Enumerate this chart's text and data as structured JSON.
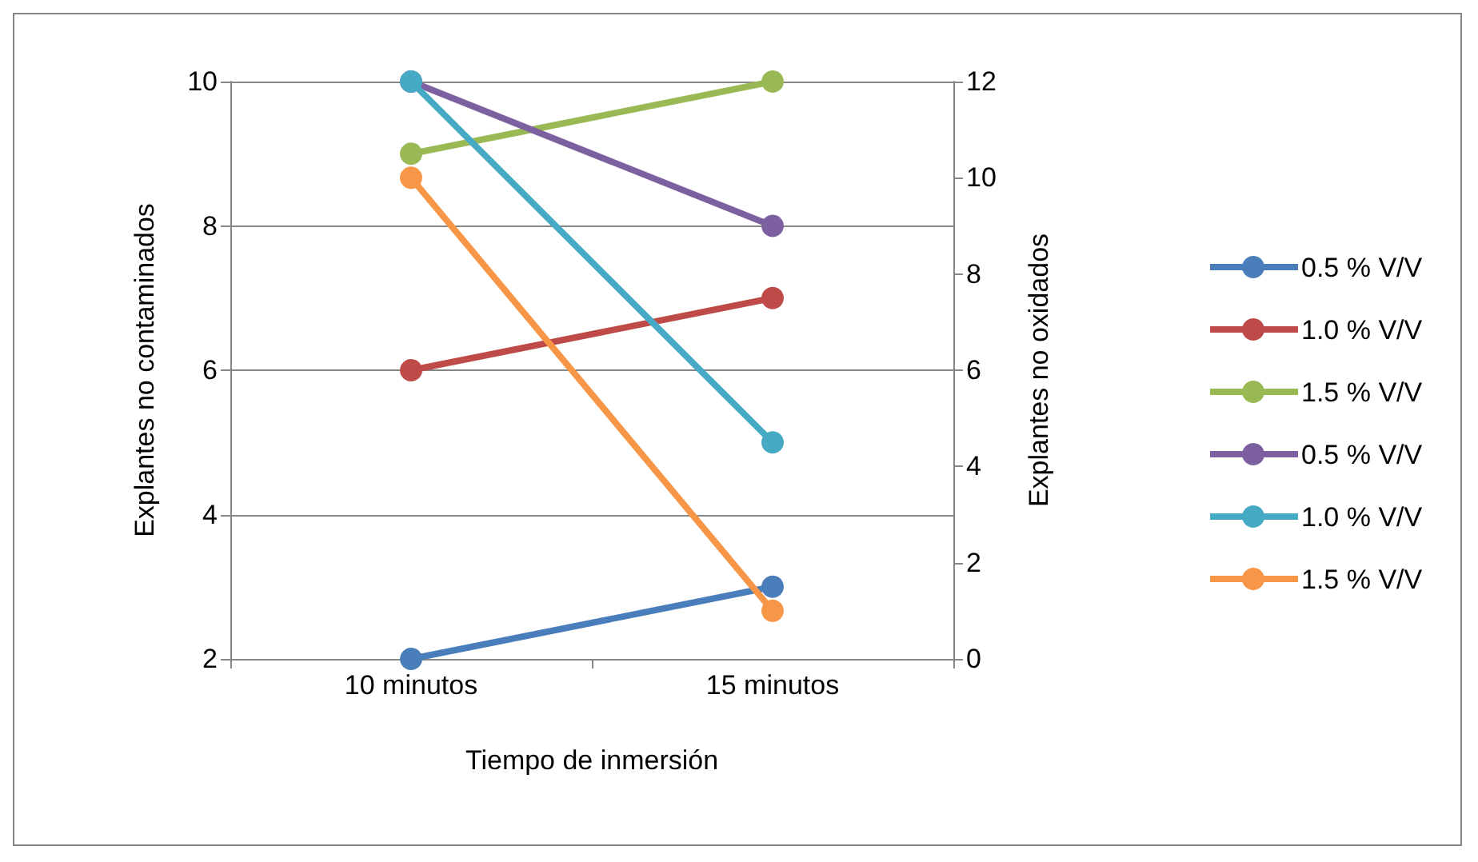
{
  "chart_data": {
    "type": "line",
    "xlabel": "Tiempo de inmersión",
    "ylabel": "Explantes no contaminados",
    "y2label": "Explantes no oxidados",
    "categories": [
      "10 minutos",
      "15 minutos"
    ],
    "series": [
      {
        "name": "0.5 % V/V",
        "color": "#4a7ebb",
        "values": [
          2,
          3
        ]
      },
      {
        "name": "1.0 % V/V",
        "color": "#be4b48",
        "values": [
          6,
          7
        ]
      },
      {
        "name": "1.5 % V/V",
        "color": "#98b954",
        "values": [
          9,
          10
        ]
      },
      {
        "name": "0.5 % V/V",
        "color": "#7d60a0",
        "values": [
          12,
          9
        ],
        "axis": "y2"
      },
      {
        "name": "1.0 % V/V",
        "color": "#46aac5",
        "values": [
          12,
          4.5
        ],
        "axis": "y2"
      },
      {
        "name": "1.5 % V/V",
        "color": "#f79646",
        "values": [
          10,
          1
        ],
        "axis": "y2"
      }
    ],
    "ylim": [
      2,
      10
    ],
    "yticks": [
      2,
      4,
      6,
      8,
      10
    ],
    "y2lim": [
      0,
      12
    ],
    "y2ticks": [
      0,
      2,
      4,
      6,
      8,
      10,
      12
    ],
    "grid": "y",
    "legend": "right",
    "marker": "circle",
    "line_style": "solid"
  }
}
